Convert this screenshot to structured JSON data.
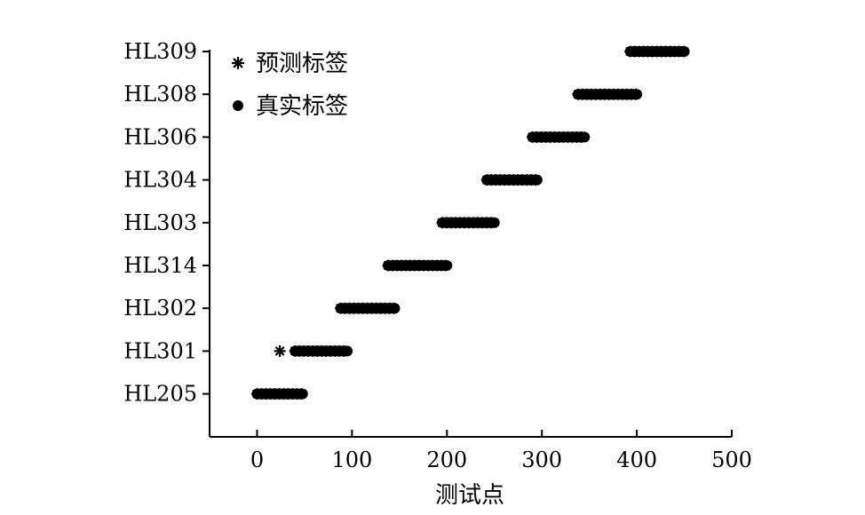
{
  "chart_data": {
    "type": "scatter",
    "title": "",
    "xlabel": "测试点",
    "ylabel": "",
    "xlim": [
      -50,
      500
    ],
    "xticks": [
      0,
      100,
      200,
      300,
      400,
      500
    ],
    "categories": [
      "HL205",
      "HL301",
      "HL302",
      "HL314",
      "HL303",
      "HL304",
      "HL306",
      "HL308",
      "HL309"
    ],
    "legend": {
      "placement": "top-left"
    },
    "grid": false,
    "series": [
      {
        "name": "预测标签",
        "marker": "asterisk",
        "color": "#000000",
        "segments": [
          {
            "label": "HL205",
            "x_start": 0,
            "x_end": 48
          },
          {
            "label": "HL301",
            "x_start": 24,
            "x_end": 24
          },
          {
            "label": "HL301",
            "x_start": 40,
            "x_end": 95
          },
          {
            "label": "HL302",
            "x_start": 88,
            "x_end": 145
          },
          {
            "label": "HL314",
            "x_start": 138,
            "x_end": 200
          },
          {
            "label": "HL303",
            "x_start": 195,
            "x_end": 250
          },
          {
            "label": "HL304",
            "x_start": 242,
            "x_end": 295
          },
          {
            "label": "HL306",
            "x_start": 290,
            "x_end": 345
          },
          {
            "label": "HL308",
            "x_start": 338,
            "x_end": 400
          },
          {
            "label": "HL309",
            "x_start": 393,
            "x_end": 450
          }
        ]
      },
      {
        "name": "真实标签",
        "marker": "dot",
        "color": "#000000",
        "segments": [
          {
            "label": "HL205",
            "x_start": 0,
            "x_end": 48
          },
          {
            "label": "HL301",
            "x_start": 40,
            "x_end": 95
          },
          {
            "label": "HL302",
            "x_start": 88,
            "x_end": 145
          },
          {
            "label": "HL314",
            "x_start": 138,
            "x_end": 200
          },
          {
            "label": "HL303",
            "x_start": 195,
            "x_end": 250
          },
          {
            "label": "HL304",
            "x_start": 242,
            "x_end": 295
          },
          {
            "label": "HL306",
            "x_start": 290,
            "x_end": 345
          },
          {
            "label": "HL308",
            "x_start": 338,
            "x_end": 400
          },
          {
            "label": "HL309",
            "x_start": 393,
            "x_end": 450
          }
        ]
      }
    ]
  }
}
